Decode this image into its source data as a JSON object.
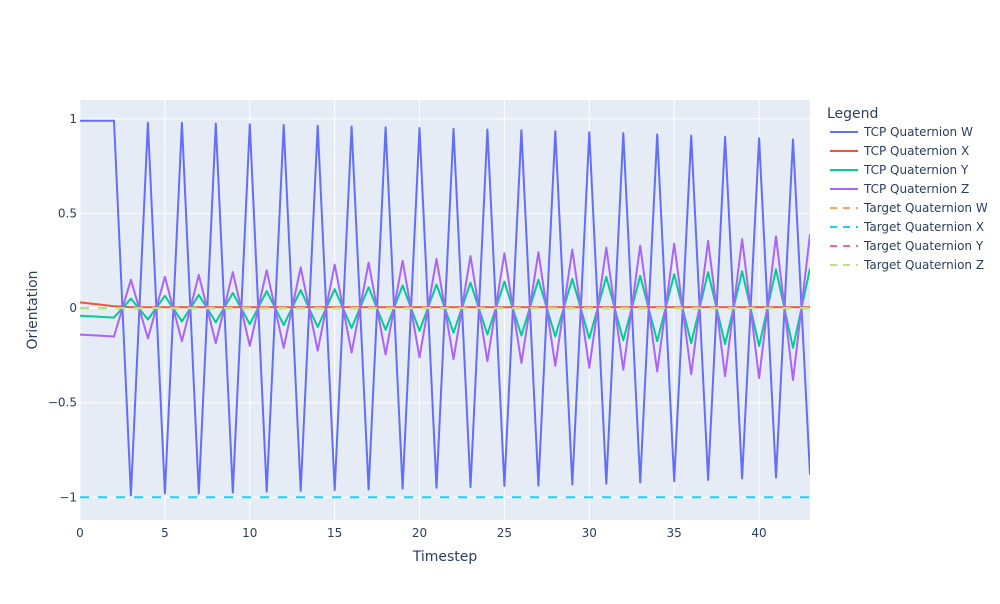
{
  "chart_data": {
    "type": "line",
    "xlabel": "Timestep",
    "ylabel": "Orientation",
    "xlim": [
      0,
      43
    ],
    "ylim": [
      -1.12,
      1.1
    ],
    "x_ticks": [
      0,
      5,
      10,
      15,
      20,
      25,
      30,
      35,
      40
    ],
    "y_ticks": [
      1,
      0.5,
      0,
      -0.5,
      -1
    ],
    "y_tick_labels": [
      "1",
      "0.5",
      "0",
      "−0.5",
      "−1"
    ],
    "legend_title": "Legend",
    "legend_position": "right",
    "grid": true,
    "plot_background": "#e5ecf6",
    "x": [
      0,
      1,
      2,
      3,
      4,
      5,
      6,
      7,
      8,
      9,
      10,
      11,
      12,
      13,
      14,
      15,
      16,
      17,
      18,
      19,
      20,
      21,
      22,
      23,
      24,
      25,
      26,
      27,
      28,
      29,
      30,
      31,
      32,
      33,
      34,
      35,
      36,
      37,
      38,
      39,
      40,
      41,
      42,
      43
    ],
    "series": [
      {
        "name": "TCP Quaternion W",
        "color": "#636efa",
        "dash": "solid",
        "values": [
          0.99,
          0.99,
          0.99,
          -0.99,
          0.98,
          -0.98,
          0.98,
          -0.98,
          0.975,
          -0.975,
          0.972,
          -0.97,
          0.968,
          -0.966,
          0.964,
          -0.962,
          0.96,
          -0.958,
          0.956,
          -0.954,
          0.952,
          -0.95,
          0.948,
          -0.946,
          0.944,
          -0.94,
          0.94,
          -0.938,
          0.935,
          -0.932,
          0.93,
          -0.928,
          0.925,
          -0.922,
          0.918,
          -0.915,
          0.912,
          -0.908,
          0.905,
          -0.9,
          0.898,
          -0.895,
          0.892,
          -0.88
        ]
      },
      {
        "name": "TCP Quaternion X",
        "color": "#ef553b",
        "dash": "solid",
        "values": [
          0.03,
          0.02,
          0.01,
          0.005,
          0.005,
          0.005,
          0.005,
          0.005,
          0.005,
          0.005,
          0.005,
          0.005,
          0.005,
          0.005,
          0.005,
          0.005,
          0.005,
          0.005,
          0.005,
          0.005,
          0.005,
          0.005,
          0.005,
          0.005,
          0.005,
          0.005,
          0.005,
          0.005,
          0.005,
          0.005,
          0.005,
          0.005,
          0.005,
          0.005,
          0.005,
          0.005,
          0.005,
          0.005,
          0.005,
          0.005,
          0.005,
          0.005,
          0.005,
          0.005
        ]
      },
      {
        "name": "TCP Quaternion Y",
        "color": "#00cc96",
        "dash": "solid",
        "values": [
          -0.04,
          -0.045,
          -0.05,
          0.05,
          -0.06,
          0.065,
          -0.07,
          0.07,
          -0.075,
          0.08,
          -0.085,
          0.09,
          -0.09,
          0.095,
          -0.1,
          0.1,
          -0.105,
          0.11,
          -0.115,
          0.12,
          -0.12,
          0.125,
          -0.13,
          0.135,
          -0.14,
          0.14,
          -0.145,
          0.15,
          -0.15,
          0.155,
          -0.16,
          0.165,
          -0.17,
          0.17,
          -0.175,
          0.18,
          -0.185,
          0.19,
          -0.19,
          0.195,
          -0.2,
          0.205,
          -0.21,
          0.21
        ]
      },
      {
        "name": "TCP Quaternion Z",
        "color": "#ab63fa",
        "dash": "solid",
        "values": [
          -0.14,
          -0.145,
          -0.15,
          0.15,
          -0.16,
          0.165,
          -0.175,
          0.175,
          -0.185,
          0.19,
          -0.2,
          0.2,
          -0.21,
          0.215,
          -0.225,
          0.23,
          -0.235,
          0.24,
          -0.245,
          0.25,
          -0.26,
          0.26,
          -0.27,
          0.275,
          -0.28,
          0.29,
          -0.29,
          0.295,
          -0.305,
          0.31,
          -0.315,
          0.32,
          -0.325,
          0.33,
          -0.335,
          0.34,
          -0.35,
          0.355,
          -0.36,
          0.365,
          -0.37,
          0.38,
          -0.38,
          0.39
        ]
      },
      {
        "name": "Target Quaternion W",
        "color": "#ffa15a",
        "dash": "dash",
        "values": [
          0,
          0,
          0,
          0,
          0,
          0,
          0,
          0,
          0,
          0,
          0,
          0,
          0,
          0,
          0,
          0,
          0,
          0,
          0,
          0,
          0,
          0,
          0,
          0,
          0,
          0,
          0,
          0,
          0,
          0,
          0,
          0,
          0,
          0,
          0,
          0,
          0,
          0,
          0,
          0,
          0,
          0,
          0,
          0
        ]
      },
      {
        "name": "Target Quaternion X",
        "color": "#19d3f3",
        "dash": "dash",
        "values": [
          -1,
          -1,
          -1,
          -1,
          -1,
          -1,
          -1,
          -1,
          -1,
          -1,
          -1,
          -1,
          -1,
          -1,
          -1,
          -1,
          -1,
          -1,
          -1,
          -1,
          -1,
          -1,
          -1,
          -1,
          -1,
          -1,
          -1,
          -1,
          -1,
          -1,
          -1,
          -1,
          -1,
          -1,
          -1,
          -1,
          -1,
          -1,
          -1,
          -1,
          -1,
          -1,
          -1,
          -1
        ]
      },
      {
        "name": "Target Quaternion Y",
        "color": "#ff6692",
        "dash": "dash",
        "values": [
          0,
          0,
          0,
          0,
          0,
          0,
          0,
          0,
          0,
          0,
          0,
          0,
          0,
          0,
          0,
          0,
          0,
          0,
          0,
          0,
          0,
          0,
          0,
          0,
          0,
          0,
          0,
          0,
          0,
          0,
          0,
          0,
          0,
          0,
          0,
          0,
          0,
          0,
          0,
          0,
          0,
          0,
          0,
          0
        ]
      },
      {
        "name": "Target Quaternion Z",
        "color": "#b6e880",
        "dash": "dash",
        "values": [
          0,
          0,
          0,
          0,
          0,
          0,
          0,
          0,
          0,
          0,
          0,
          0,
          0,
          0,
          0,
          0,
          0,
          0,
          0,
          0,
          0,
          0,
          0,
          0,
          0,
          0,
          0,
          0,
          0,
          0,
          0,
          0,
          0,
          0,
          0,
          0,
          0,
          0,
          0,
          0,
          0,
          0,
          0,
          0
        ]
      }
    ]
  }
}
